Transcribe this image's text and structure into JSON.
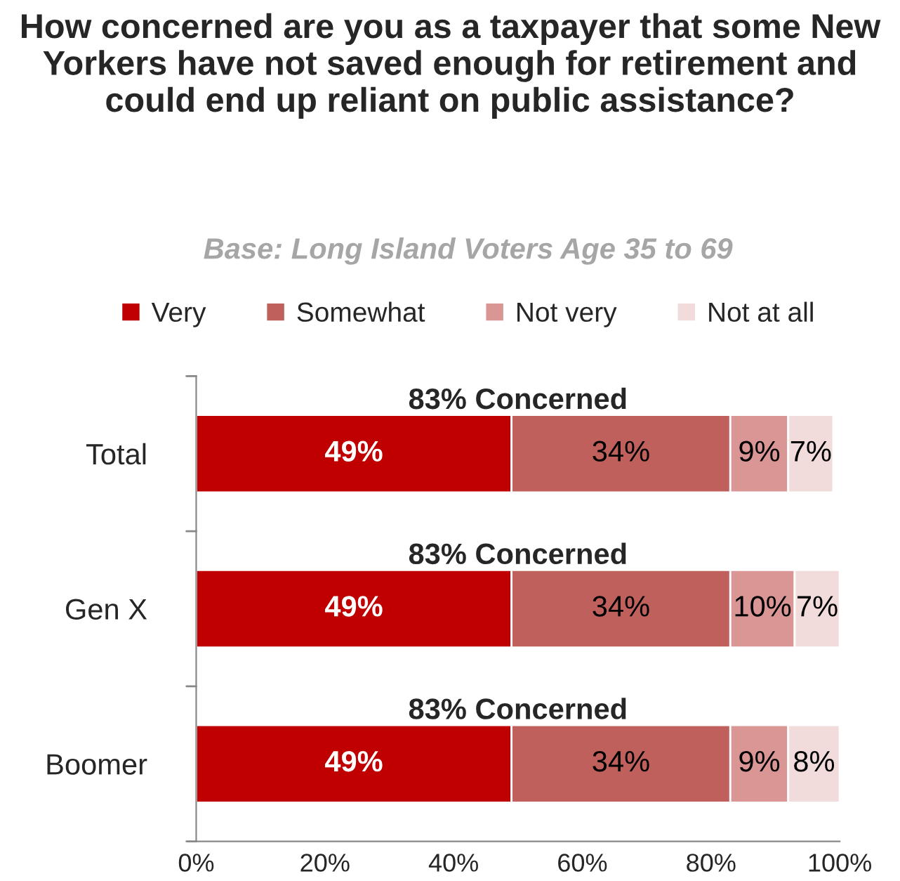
{
  "chart_data": {
    "type": "bar",
    "orientation": "horizontal",
    "stacked": true,
    "title": "How concerned are you as a taxpayer that some New Yorkers have not saved enough for retirement and could end up reliant on public assistance?",
    "subtitle": "Base: Long Island Voters Age 35 to 69",
    "categories": [
      "Total",
      "Gen X",
      "Boomer"
    ],
    "series": [
      {
        "name": "Very",
        "color": "#c00000",
        "values": [
          49,
          49,
          49
        ],
        "value_labels": [
          "49%",
          "49%",
          "49%"
        ]
      },
      {
        "name": "Somewhat",
        "color": "#c0605c",
        "values": [
          34,
          34,
          34
        ],
        "value_labels": [
          "34%",
          "34%",
          "34%"
        ]
      },
      {
        "name": "Not very",
        "color": "#d99694",
        "values": [
          9,
          10,
          9
        ],
        "value_labels": [
          "9%",
          "10%",
          "9%"
        ]
      },
      {
        "name": "Not at all",
        "color": "#f2dcdb",
        "values": [
          7,
          7,
          8
        ],
        "value_labels": [
          "7%",
          "7%",
          "8%"
        ]
      }
    ],
    "xlim": [
      0,
      100
    ],
    "xticks": [
      {
        "value": 0,
        "label": "0%"
      },
      {
        "value": 20,
        "label": "20%"
      },
      {
        "value": 40,
        "label": "40%"
      },
      {
        "value": 60,
        "label": "60%"
      },
      {
        "value": 80,
        "label": "80%"
      },
      {
        "value": 100,
        "label": "100%"
      }
    ],
    "annotations": [
      {
        "text": "83% Concerned",
        "y": "Total"
      },
      {
        "text": "83% Concerned",
        "y": "Gen X"
      },
      {
        "text": "83% Concerned",
        "y": "Boomer"
      }
    ],
    "legend": "top",
    "grid": false
  }
}
